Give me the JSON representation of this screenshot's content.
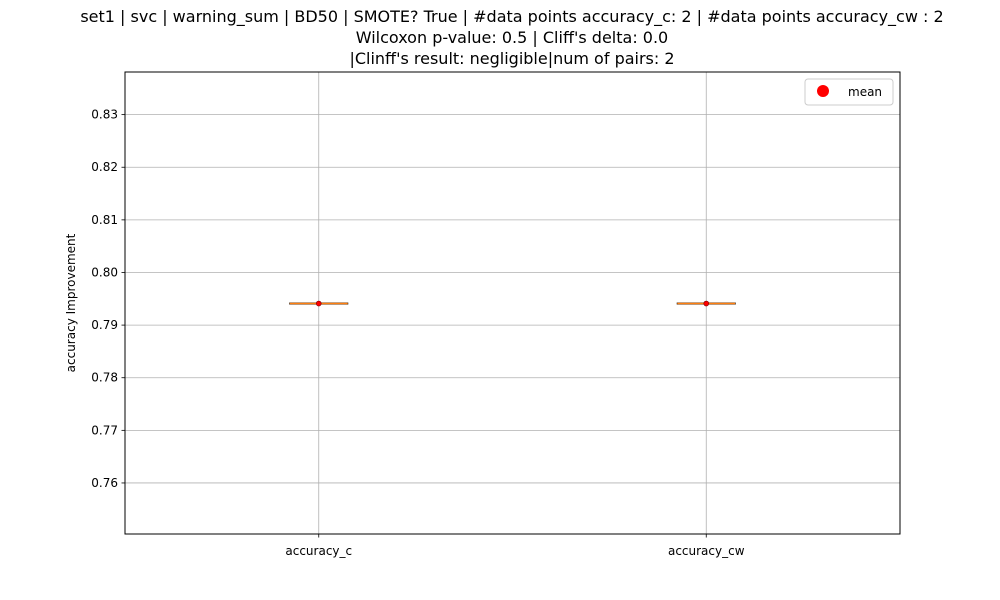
{
  "chart_data": {
    "type": "box",
    "title_lines": [
      "set1 | svc | warning_sum | BD50 | SMOTE? True | #data points accuracy_c: 2 | #data points accuracy_cw : 2",
      "Wilcoxon p-value: 0.5 | Cliff's delta: 0.0",
      "|Clinff's result: negligible|num of pairs: 2"
    ],
    "xlabel": "",
    "ylabel": "accuracy Improvement",
    "categories": [
      "accuracy_c",
      "accuracy_cw"
    ],
    "series": [
      {
        "category": "accuracy_c",
        "min": 0.7941,
        "q1": 0.7941,
        "median": 0.7941,
        "q3": 0.7941,
        "max": 0.7941,
        "mean": 0.7941
      },
      {
        "category": "accuracy_cw",
        "min": 0.7941,
        "q1": 0.7941,
        "median": 0.7941,
        "q3": 0.7941,
        "max": 0.7941,
        "mean": 0.7941
      }
    ],
    "ylim": [
      0.7503,
      0.8381
    ],
    "yticks": [
      0.76,
      0.77,
      0.78,
      0.79,
      0.8,
      0.81,
      0.82,
      0.83
    ],
    "ytick_labels": [
      "0.76",
      "0.77",
      "0.78",
      "0.79",
      "0.80",
      "0.81",
      "0.82",
      "0.83"
    ],
    "grid": true,
    "legend": {
      "position": "top-right",
      "entries": [
        {
          "label": "mean",
          "marker": "circle",
          "color": "#ff0000"
        }
      ]
    },
    "colors": {
      "median": "#ff7f0e",
      "box": "#000000",
      "mean": "#ff0000",
      "grid": "#b0b0b0"
    }
  }
}
